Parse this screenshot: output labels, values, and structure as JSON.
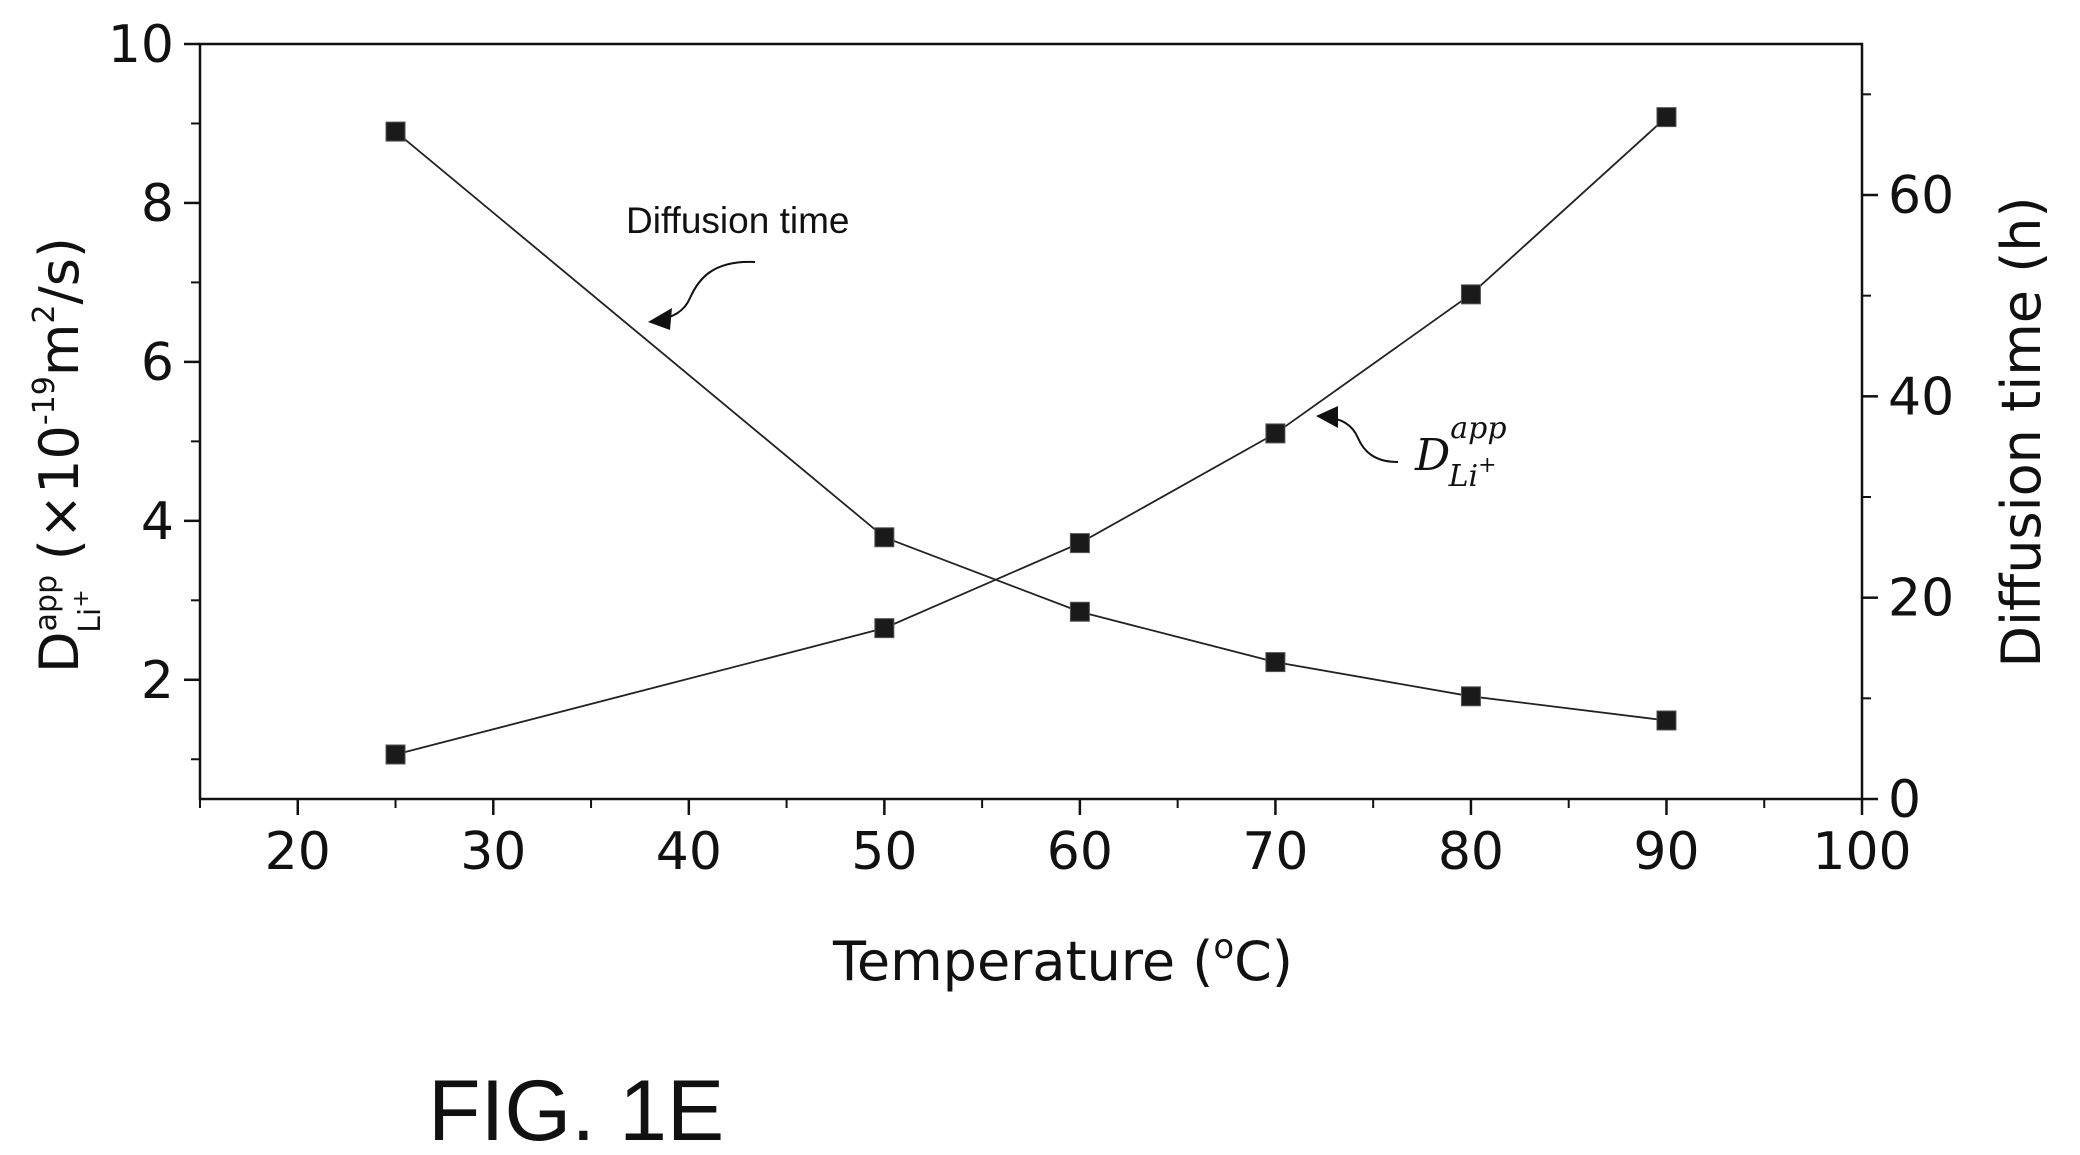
{
  "chart_data": {
    "type": "line",
    "x": [
      25,
      50,
      60,
      70,
      80,
      90
    ],
    "xlabel": "Temperature (",
    "xlabel_sup": "o",
    "xlabel_tail": "C)",
    "xlim": [
      15,
      100
    ],
    "xticks": [
      "20",
      "30",
      "40",
      "50",
      "60",
      "70",
      "80",
      "90",
      "100"
    ],
    "y_left": {
      "label_main": "D",
      "label_sup": "app",
      "label_sub": "Li",
      "label_subsup": "+",
      "label_rest": "(×10",
      "label_exp": "-19",
      "label_unit": "m",
      "label_unit_exp": "2",
      "label_end": "/s)",
      "ylim": [
        0.5,
        10
      ],
      "yticks": [
        "2",
        "4",
        "6",
        "8",
        "10"
      ]
    },
    "y_right": {
      "label": "Diffusion time (h)",
      "ylim": [
        0,
        75
      ],
      "yticks": [
        "0",
        "20",
        "40",
        "60"
      ]
    },
    "series": [
      {
        "axis": "left",
        "values": [
          1.06,
          2.65,
          3.72,
          5.1,
          6.85,
          9.08
        ]
      },
      {
        "axis": "right",
        "values": [
          66.3,
          26.0,
          18.6,
          13.6,
          10.2,
          7.8
        ]
      }
    ],
    "annotations": {
      "diffusion_label": "Diffusion time",
      "d_label_main": "D",
      "d_label_sup": "app",
      "d_label_sub": "Li",
      "d_label_subsup": "+"
    },
    "grid": false,
    "legend": "none"
  },
  "figure_label": "FIG. 1E",
  "colors": {
    "line": "#222222",
    "marker": "#1a1a1a"
  }
}
